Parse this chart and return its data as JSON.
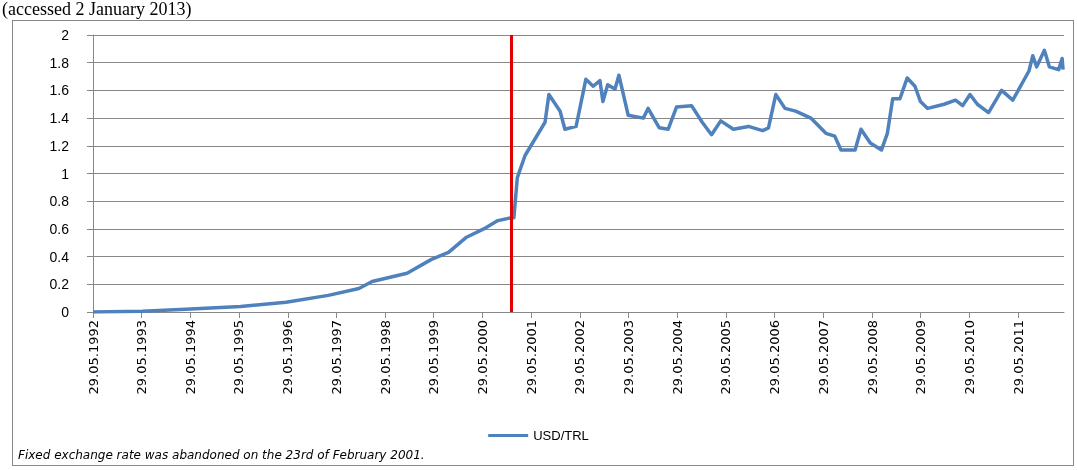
{
  "chart_data": {
    "type": "line",
    "x": [
      "1992-05-29",
      "1993-06-03",
      "1994-04-24",
      "1995-06-10",
      "1996-05-16",
      "1997-03-29",
      "1997-11-14",
      "1998-02-21",
      "1998-11-10",
      "1999-05-12",
      "1999-09-17",
      "2000-01-30",
      "2000-06-07",
      "2000-09-21",
      "2000-12-28",
      "2001-01-19",
      "2001-02-14",
      "2001-04-13",
      "2001-09-10",
      "2001-10-09",
      "2002-01-01",
      "2002-02-06",
      "2002-05-01",
      "2002-07-13",
      "2002-09-06",
      "2002-10-27",
      "2002-11-18",
      "2002-12-24",
      "2003-02-17",
      "2003-03-18",
      "2003-05-27",
      "2003-09-17",
      "2003-10-23",
      "2004-01-15",
      "2004-03-22",
      "2004-05-23",
      "2004-09-13",
      "2004-12-02",
      "2005-02-10",
      "2005-04-20",
      "2005-07-24",
      "2005-11-14",
      "2006-02-28",
      "2006-04-13",
      "2006-06-07",
      "2006-08-15",
      "2006-11-03",
      "2007-02-25",
      "2007-06-18",
      "2007-08-23",
      "2007-10-09",
      "2008-01-23",
      "2008-03-07",
      "2008-05-16",
      "2008-08-08",
      "2008-09-21",
      "2008-10-31",
      "2008-12-24",
      "2009-02-17",
      "2009-04-16",
      "2009-05-27",
      "2009-07-20",
      "2009-11-21",
      "2010-02-14",
      "2010-04-09",
      "2010-06-03",
      "2010-07-28",
      "2010-10-20",
      "2011-01-26",
      "2011-04-20",
      "2011-08-19",
      "2011-09-17",
      "2011-10-16",
      "2011-12-13",
      "2012-01-19",
      "2012-03-29",
      "2012-04-24",
      "2012-05-01"
    ],
    "series": [
      {
        "name": "USD/TRL",
        "color": "#4f81bd",
        "values": [
          0,
          0.005,
          0.02,
          0.04,
          0.07,
          0.12,
          0.17,
          0.22,
          0.28,
          0.38,
          0.43,
          0.54,
          0.6,
          0.66,
          0.68,
          0.68,
          0.97,
          1.13,
          1.37,
          1.57,
          1.45,
          1.32,
          1.34,
          1.68,
          1.63,
          1.67,
          1.52,
          1.64,
          1.61,
          1.71,
          1.42,
          1.4,
          1.47,
          1.33,
          1.32,
          1.48,
          1.49,
          1.37,
          1.28,
          1.38,
          1.32,
          1.34,
          1.31,
          1.33,
          1.57,
          1.47,
          1.45,
          1.4,
          1.29,
          1.27,
          1.17,
          1.17,
          1.32,
          1.22,
          1.17,
          1.29,
          1.54,
          1.54,
          1.69,
          1.63,
          1.52,
          1.47,
          1.5,
          1.53,
          1.49,
          1.57,
          1.5,
          1.44,
          1.6,
          1.53,
          1.74,
          1.85,
          1.77,
          1.89,
          1.77,
          1.75,
          1.83,
          1.75
        ]
      }
    ],
    "xlim": [
      "1992-05-29",
      "2012-05-08"
    ],
    "xticks": [
      {
        "value": "1992-05-29",
        "label": "29.05.1992"
      },
      {
        "value": "1993-05-29",
        "label": "29.05.1993"
      },
      {
        "value": "1994-05-29",
        "label": "29.05.1994"
      },
      {
        "value": "1995-05-29",
        "label": "29.05.1995"
      },
      {
        "value": "1996-05-29",
        "label": "29.05.1996"
      },
      {
        "value": "1997-05-29",
        "label": "29.05.1997"
      },
      {
        "value": "1998-05-29",
        "label": "29.05.1998"
      },
      {
        "value": "1999-05-29",
        "label": "29.05.1999"
      },
      {
        "value": "2000-05-29",
        "label": "29.05.2000"
      },
      {
        "value": "2001-05-29",
        "label": "29.05.2001"
      },
      {
        "value": "2002-05-29",
        "label": "29.05.2002"
      },
      {
        "value": "2003-05-29",
        "label": "29.05.2003"
      },
      {
        "value": "2004-05-29",
        "label": "29.05.2004"
      },
      {
        "value": "2005-05-29",
        "label": "29.05.2005"
      },
      {
        "value": "2006-05-29",
        "label": "29.05.2006"
      },
      {
        "value": "2007-05-29",
        "label": "29.05.2007"
      },
      {
        "value": "2008-05-29",
        "label": "29.05.2008"
      },
      {
        "value": "2009-05-29",
        "label": "29.05.2009"
      },
      {
        "value": "2010-05-29",
        "label": "29.05.2010"
      },
      {
        "value": "2011-05-29",
        "label": "29.05.2011"
      }
    ],
    "ylim": [
      0,
      2
    ],
    "yticks": [
      0,
      0.2,
      0.4,
      0.6,
      0.8,
      1,
      1.2,
      1.4,
      1.6,
      1.8,
      2
    ],
    "grid": "y",
    "legend": "bottom",
    "ref_lines": [
      {
        "axis": "x",
        "value": "2001-01-01",
        "color": "#e00000"
      }
    ],
    "annotations": [
      "(accessed 2 January 2013)",
      "Fixed exchange rate was abandoned on the 23rd of February 2001."
    ]
  }
}
